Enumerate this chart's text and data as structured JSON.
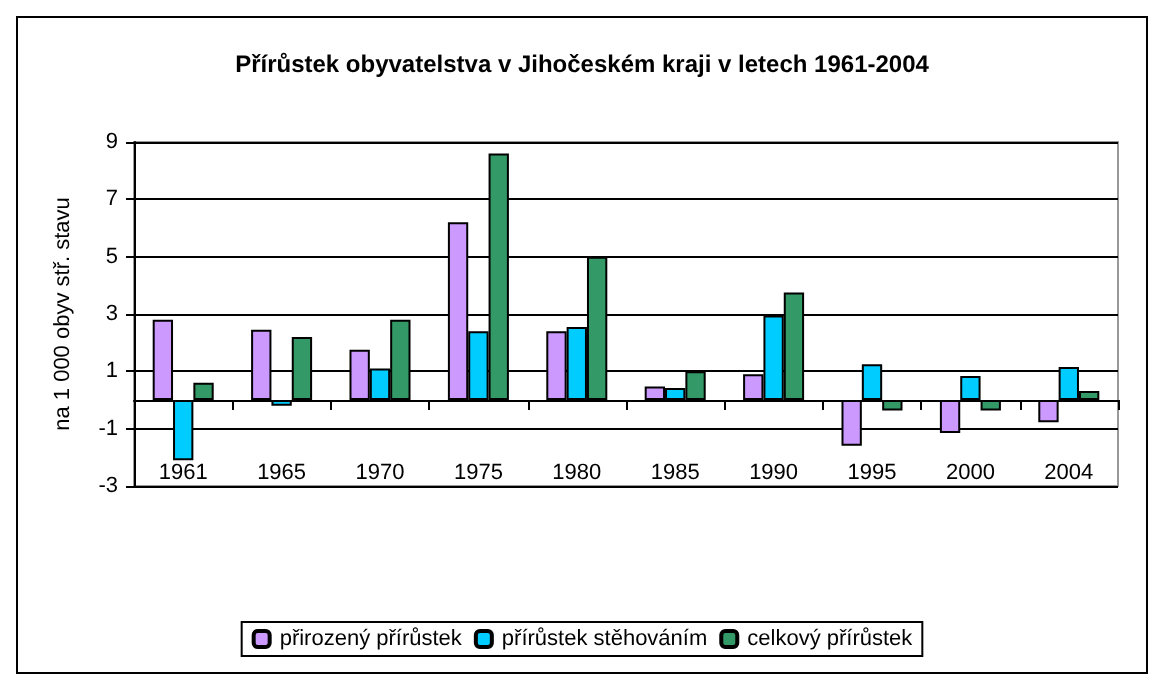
{
  "chart_data": {
    "type": "bar",
    "title": "Přírůstek obyvatelstva v Jihočeském kraji v letech 1961-2004",
    "ylabel": "na 1 000 obyv stř. stavu",
    "categories": [
      "1961",
      "1965",
      "1970",
      "1975",
      "1980",
      "1985",
      "1990",
      "1995",
      "2000",
      "2004"
    ],
    "series": [
      {
        "name": "přirozený přírůstek",
        "color": "#cc99ff",
        "values": [
          2.8,
          2.45,
          1.75,
          6.2,
          2.4,
          0.47,
          0.9,
          -1.6,
          -1.15,
          -0.78
        ]
      },
      {
        "name": "přírůstek stěhováním",
        "color": "#00ccff",
        "values": [
          -2.1,
          -0.2,
          1.1,
          2.4,
          2.55,
          0.42,
          2.95,
          1.25,
          0.84,
          1.15
        ]
      },
      {
        "name": "celkový přírůstek",
        "color": "#339966",
        "values": [
          0.6,
          2.2,
          2.8,
          8.6,
          5.0,
          1.0,
          3.75,
          -0.37,
          -0.37,
          0.31
        ]
      }
    ],
    "ylim": [
      -3,
      9
    ],
    "yticks": [
      -3,
      -1,
      1,
      3,
      5,
      7,
      9
    ],
    "grid": "y",
    "legend": "bottom"
  }
}
